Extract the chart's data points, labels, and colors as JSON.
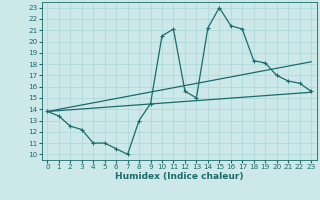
{
  "xlabel": "Humidex (Indice chaleur)",
  "xlim": [
    -0.5,
    23.5
  ],
  "ylim": [
    9.5,
    23.5
  ],
  "xticks": [
    0,
    1,
    2,
    3,
    4,
    5,
    6,
    7,
    8,
    9,
    10,
    11,
    12,
    13,
    14,
    15,
    16,
    17,
    18,
    19,
    20,
    21,
    22,
    23
  ],
  "yticks": [
    10,
    11,
    12,
    13,
    14,
    15,
    16,
    17,
    18,
    19,
    20,
    21,
    22,
    23
  ],
  "bg_color": "#cce8e8",
  "line_color": "#1a6b6b",
  "grid_color": "#aad8d8",
  "line1_x": [
    0,
    1,
    2,
    3,
    4,
    5,
    6,
    7,
    8,
    9,
    10,
    11,
    12,
    13,
    14,
    15,
    16,
    17,
    18,
    19,
    20,
    21,
    22,
    23
  ],
  "line1_y": [
    13.8,
    13.4,
    12.5,
    12.2,
    11.0,
    11.0,
    10.5,
    10.0,
    13.0,
    14.5,
    20.5,
    21.1,
    15.6,
    15.0,
    21.2,
    23.0,
    21.4,
    21.1,
    18.3,
    18.1,
    17.0,
    16.5,
    16.3,
    15.6
  ],
  "line2_x": [
    0,
    23
  ],
  "line2_y": [
    13.8,
    18.2
  ],
  "line3_x": [
    0,
    23
  ],
  "line3_y": [
    13.8,
    15.5
  ],
  "linewidth": 0.9,
  "label_fontsize": 6.5,
  "tick_fontsize": 5.2
}
